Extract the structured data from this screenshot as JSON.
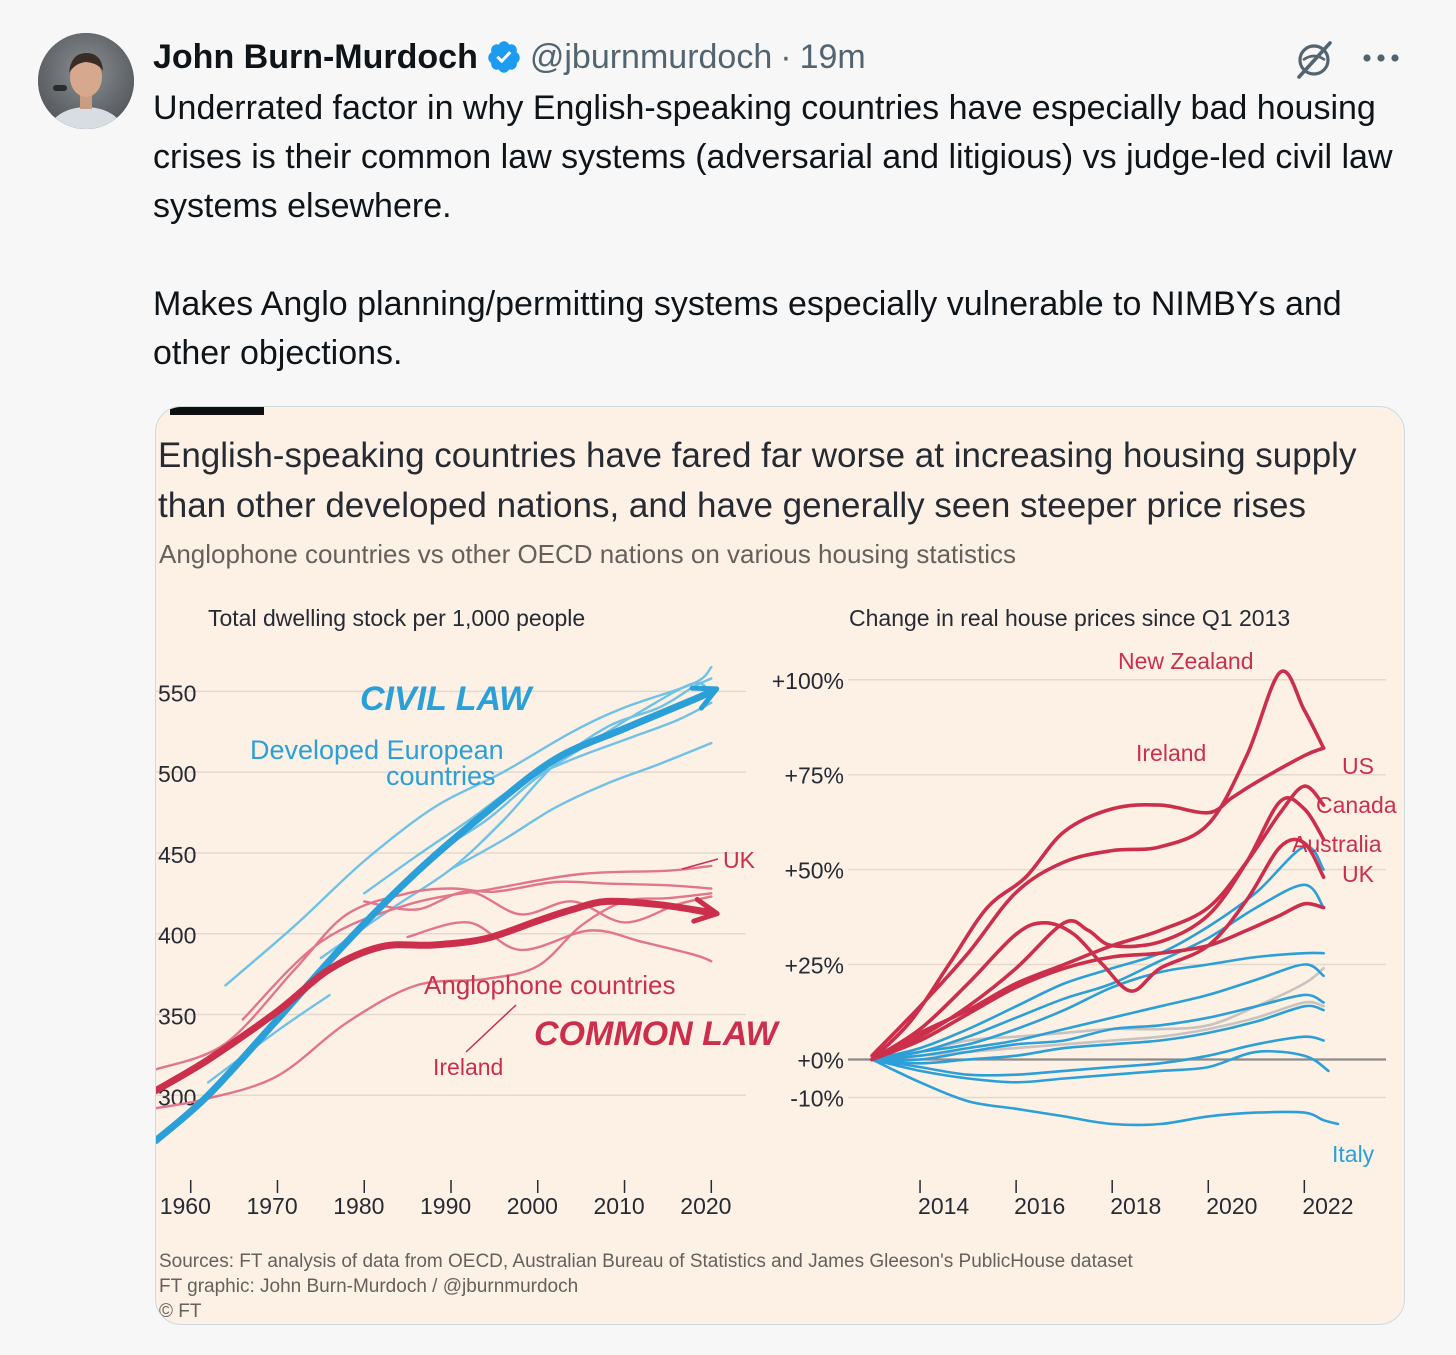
{
  "author": {
    "name": "John Burn-Murdoch",
    "handle": "@jburnmurdoch",
    "separator": "·",
    "time": "19m",
    "verified": true
  },
  "icons": {
    "verified": "verified-badge-icon",
    "grok": "grok-icon",
    "more": "more-icon"
  },
  "tweet": {
    "paragraphs": [
      "Underrated factor in why English-speaking countries have especially bad housing crises is their common law systems (adversarial and litigious) vs judge-led civil law systems elsewhere.",
      "Makes Anglo planning/permitting systems especially vulnerable to NIMBYs and other objections."
    ]
  },
  "card": {
    "title": "English-speaking countries have fared far worse at increasing housing supply than other developed nations, and have generally seen steeper price rises",
    "subtitle": "Anglophone countries vs other OECD nations on various housing statistics",
    "footer": [
      "Sources: FT analysis of data from OECD, Australian Bureau of Statistics and James Gleeson's PublicHouse dataset",
      "FT graphic: John Burn-Murdoch / @jburnmurdoch",
      "© FT"
    ]
  },
  "colors": {
    "civil": "#2b9fd8",
    "civil_light": "#6fc1e6",
    "common": "#cb2f4c",
    "common_light": "#e3758b",
    "grey": "#c9c3bf",
    "text": "#262a33"
  },
  "chart_data": [
    {
      "type": "line",
      "title": "Total dwelling stock per 1,000 people",
      "xlabel": "",
      "ylabel": "",
      "x_ticks": [
        "1960",
        "1970",
        "1980",
        "1990",
        "2000",
        "2010",
        "2020"
      ],
      "y_ticks": [
        "550",
        "500",
        "450",
        "400",
        "350",
        "300"
      ],
      "xlim": [
        1956,
        2024
      ],
      "ylim": [
        268,
        562
      ],
      "grid": true,
      "annotations": [
        "CIVIL LAW",
        "Developed European countries",
        "UK",
        "Anglophone countries",
        "COMMON LAW",
        "Ireland"
      ],
      "series": [
        {
          "name": "Developed European countries",
          "group": "civil",
          "highlight": true,
          "x": [
            1956,
            1962,
            1970,
            1978,
            1986,
            1994,
            2002,
            2010,
            2018,
            2020
          ],
          "y": [
            272,
            300,
            347,
            395,
            438,
            475,
            508,
            527,
            545,
            550
          ]
        },
        {
          "name": "",
          "group": "civil",
          "x": [
            1964,
            1972,
            1980,
            1988,
            1996,
            2004,
            2010,
            2018,
            2020
          ],
          "y": [
            368,
            405,
            445,
            478,
            500,
            525,
            540,
            555,
            565
          ]
        },
        {
          "name": "",
          "group": "civil",
          "x": [
            1975,
            1983,
            1990,
            1996,
            2002,
            2008,
            2014,
            2018,
            2020
          ],
          "y": [
            385,
            415,
            440,
            470,
            505,
            528,
            540,
            553,
            558
          ]
        },
        {
          "name": "",
          "group": "civil",
          "x": [
            1988,
            1994,
            2000,
            2006,
            2012,
            2018,
            2020
          ],
          "y": [
            450,
            470,
            497,
            518,
            538,
            555,
            548
          ]
        },
        {
          "name": "",
          "group": "civil",
          "x": [
            1980,
            1986,
            1992,
            1998,
            2004,
            2010,
            2016,
            2020
          ],
          "y": [
            425,
            448,
            470,
            493,
            508,
            520,
            532,
            543
          ]
        },
        {
          "name": "",
          "group": "civil",
          "x": [
            1990,
            1996,
            2002,
            2008,
            2014,
            2020
          ],
          "y": [
            440,
            458,
            478,
            493,
            505,
            518
          ]
        },
        {
          "name": "",
          "group": "civil",
          "x": [
            1962,
            1970,
            1976
          ],
          "y": [
            308,
            340,
            362
          ]
        },
        {
          "name": "Anglophone countries",
          "group": "common",
          "highlight": true,
          "x": [
            1956,
            1962,
            1970,
            1976,
            1982,
            1988,
            1994,
            2000,
            2004,
            2008,
            2014,
            2020
          ],
          "y": [
            303,
            322,
            352,
            378,
            392,
            393,
            397,
            408,
            415,
            420,
            418,
            413
          ]
        },
        {
          "name": "UK",
          "group": "common",
          "x": [
            1966,
            1975,
            1985,
            1995,
            2005,
            2015,
            2020
          ],
          "y": [
            347,
            395,
            418,
            428,
            437,
            439,
            442
          ]
        },
        {
          "name": "",
          "group": "common",
          "x": [
            1956,
            1964,
            1972,
            1978,
            1985,
            1990,
            1995,
            2002,
            2008,
            2015,
            2020
          ],
          "y": [
            316,
            332,
            378,
            412,
            425,
            428,
            426,
            432,
            431,
            430,
            428
          ]
        },
        {
          "name": "",
          "group": "common",
          "x": [
            1980,
            1986,
            1992,
            1998,
            2004,
            2010,
            2016,
            2020
          ],
          "y": [
            420,
            415,
            426,
            412,
            420,
            407,
            418,
            423
          ]
        },
        {
          "name": "",
          "group": "common",
          "x": [
            1985,
            1992,
            1998,
            2006,
            2012,
            2018,
            2020
          ],
          "y": [
            398,
            407,
            390,
            402,
            395,
            387,
            383
          ]
        },
        {
          "name": "Ireland",
          "group": "common",
          "x": [
            1956,
            1962,
            1970,
            1978,
            1986,
            1994,
            2000,
            2005,
            2010,
            2015,
            2020
          ],
          "y": [
            292,
            298,
            312,
            345,
            368,
            372,
            380,
            405,
            420,
            422,
            425
          ]
        }
      ]
    },
    {
      "type": "line",
      "title": "Change in real house prices since Q1 2013",
      "xlabel": "",
      "ylabel": "",
      "x_ticks": [
        "2014",
        "2016",
        "2018",
        "2020",
        "2022"
      ],
      "y_ticks": [
        "+100%",
        "+75%",
        "+50%",
        "+25%",
        "+0%",
        "-10%"
      ],
      "xlim": [
        2012.5,
        2023.7
      ],
      "ylim": [
        -22,
        106
      ],
      "grid": true,
      "annotations": [
        "New Zealand",
        "Ireland",
        "US",
        "Canada",
        "Australia",
        "UK",
        "Italy"
      ],
      "series": [
        {
          "name": "New Zealand",
          "group": "common",
          "x": [
            2013,
            2014,
            2015,
            2016,
            2017,
            2018,
            2019,
            2020,
            2020.8,
            2021.5,
            2022,
            2022.4
          ],
          "y": [
            1,
            14,
            28,
            44,
            52,
            55,
            56,
            62,
            80,
            102,
            92,
            82
          ]
        },
        {
          "name": "Ireland",
          "group": "common",
          "x": [
            2013,
            2013.8,
            2014.6,
            2015.4,
            2016.2,
            2017,
            2018,
            2019,
            2020,
            2020.5,
            2021,
            2022,
            2022.4
          ],
          "y": [
            0,
            10,
            25,
            40,
            48,
            60,
            66,
            67,
            65,
            69,
            73,
            80,
            82
          ]
        },
        {
          "name": "US",
          "group": "common",
          "x": [
            2013,
            2014,
            2015,
            2016,
            2017,
            2018,
            2019,
            2020,
            2020.8,
            2021.5,
            2022,
            2022.4
          ],
          "y": [
            0,
            7,
            13,
            20,
            25,
            30,
            34,
            40,
            52,
            65,
            72,
            67
          ]
        },
        {
          "name": "Canada",
          "group": "common",
          "x": [
            2013,
            2014,
            2015,
            2016,
            2017,
            2017.5,
            2018,
            2019,
            2020,
            2020.8,
            2021.5,
            2022,
            2022.4
          ],
          "y": [
            0,
            6,
            14,
            24,
            36,
            34,
            30,
            31,
            38,
            52,
            68,
            66,
            58
          ]
        },
        {
          "name": "Australia",
          "group": "common",
          "x": [
            2013,
            2014,
            2015,
            2016,
            2016.6,
            2017.2,
            2017.8,
            2018.4,
            2019,
            2020,
            2020.8,
            2021.5,
            2022,
            2022.4
          ],
          "y": [
            0,
            8,
            20,
            33,
            36,
            33,
            25,
            18,
            24,
            30,
            42,
            56,
            57,
            48
          ]
        },
        {
          "name": "UK",
          "group": "common",
          "x": [
            2013,
            2014,
            2015,
            2016,
            2017,
            2018,
            2019,
            2020,
            2020.8,
            2021.5,
            2022,
            2022.4
          ],
          "y": [
            0,
            5,
            12,
            19,
            24,
            27,
            28,
            30,
            34,
            38,
            41,
            40
          ]
        },
        {
          "name": "Italy",
          "group": "civil",
          "x": [
            2013,
            2014,
            2015,
            2016,
            2017,
            2018,
            2019,
            2020,
            2021,
            2022,
            2022.4,
            2022.7
          ],
          "y": [
            0,
            -6,
            -11,
            -13,
            -15,
            -17,
            -17,
            -15,
            -14,
            -14,
            -16,
            -17
          ]
        },
        {
          "name": "",
          "group": "civil",
          "x": [
            2013,
            2014,
            2015,
            2016,
            2017,
            2018,
            2019,
            2020,
            2021,
            2022,
            2022.4
          ],
          "y": [
            0,
            3,
            8,
            14,
            20,
            24,
            28,
            35,
            44,
            56,
            50
          ]
        },
        {
          "name": "",
          "group": "civil",
          "x": [
            2013,
            2014,
            2015,
            2016,
            2017,
            2018,
            2019,
            2020,
            2021,
            2022,
            2022.4
          ],
          "y": [
            0,
            2,
            6,
            11,
            16,
            20,
            26,
            32,
            40,
            46,
            40
          ]
        },
        {
          "name": "",
          "group": "civil",
          "x": [
            2013,
            2014,
            2015,
            2016,
            2017,
            2018,
            2019,
            2020,
            2021,
            2022,
            2022.4
          ],
          "y": [
            0,
            2,
            4,
            8,
            13,
            19,
            23,
            25,
            27,
            28,
            28
          ]
        },
        {
          "name": "",
          "group": "civil",
          "x": [
            2013,
            2014,
            2015,
            2016,
            2017,
            2018,
            2019,
            2020,
            2021,
            2022,
            2022.4
          ],
          "y": [
            0,
            1,
            3,
            5,
            8,
            11,
            14,
            17,
            21,
            25,
            22
          ]
        },
        {
          "name": "",
          "group": "civil",
          "x": [
            2013,
            2014,
            2015,
            2016,
            2017,
            2018,
            2019,
            2020,
            2021,
            2022,
            2022.4
          ],
          "y": [
            0,
            0,
            2,
            4,
            5,
            8,
            9,
            11,
            14,
            17,
            15
          ]
        },
        {
          "name": "",
          "group": "civil",
          "x": [
            2013,
            2014,
            2015,
            2016,
            2017,
            2018,
            2019,
            2020,
            2021,
            2022,
            2022.4
          ],
          "y": [
            0,
            -1,
            0,
            1,
            3,
            4,
            5,
            7,
            10,
            14,
            13
          ]
        },
        {
          "name": "",
          "group": "civil",
          "x": [
            2013,
            2014,
            2015,
            2016,
            2017,
            2018,
            2019,
            2020,
            2021,
            2022,
            2022.4
          ],
          "y": [
            0,
            -2,
            -4,
            -4,
            -3,
            -2,
            -1,
            1,
            4,
            6,
            5
          ]
        },
        {
          "name": "",
          "group": "civil",
          "x": [
            2013,
            2014,
            2015,
            2016,
            2017,
            2018,
            2019,
            2020,
            2021,
            2022,
            2022.5
          ],
          "y": [
            0,
            -3,
            -5,
            -6,
            -5,
            -4,
            -3,
            -2,
            2,
            1,
            -3
          ]
        },
        {
          "name": "",
          "group": "grey",
          "x": [
            2013,
            2014,
            2015,
            2016,
            2017,
            2018,
            2019,
            2020,
            2021,
            2022,
            2022.4
          ],
          "y": [
            0,
            2,
            5,
            6,
            7,
            8,
            8,
            9,
            14,
            20,
            24
          ]
        },
        {
          "name": "",
          "group": "grey",
          "x": [
            2013,
            2014,
            2015,
            2016,
            2017,
            2018,
            2019,
            2020,
            2021,
            2022,
            2022.4
          ],
          "y": [
            0,
            1,
            2,
            3,
            4,
            5,
            6,
            8,
            11,
            15,
            14
          ]
        }
      ]
    }
  ]
}
